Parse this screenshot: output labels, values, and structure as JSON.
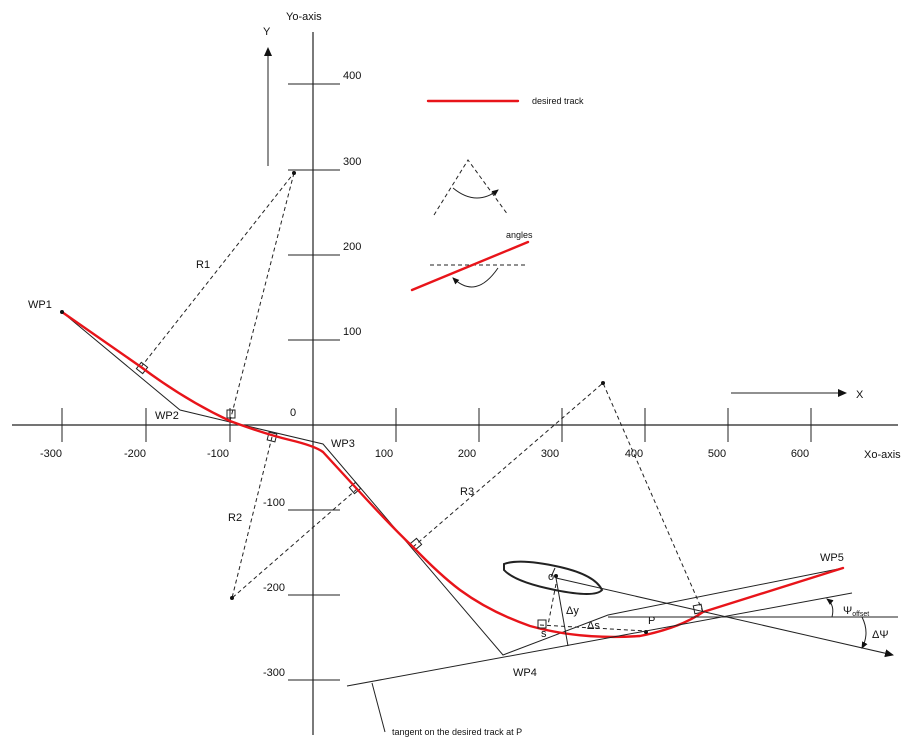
{
  "axes": {
    "x_axis_label": "Xo-axis",
    "y_axis_label": "Yo-axis",
    "x_arrow_label": "X",
    "y_arrow_label": "Y",
    "origin_label": "0",
    "x_ticks": [
      "-300",
      "-200",
      "-100",
      "100",
      "200",
      "300",
      "400",
      "500",
      "600"
    ],
    "y_ticks": [
      "400",
      "300",
      "200",
      "100",
      "-100",
      "-200",
      "-300"
    ]
  },
  "legend": {
    "desired_track": "desired track",
    "angles": "angles",
    "track_color": "#e8141a"
  },
  "waypoints": {
    "wp1": "WP1",
    "wp2": "WP2",
    "wp3": "WP3",
    "wp4": "WP4",
    "wp5": "WP5"
  },
  "radii": {
    "r1": "R1",
    "r2": "R2",
    "r3": "R3"
  },
  "vessel_annotations": {
    "origin": "o",
    "delta_y": "Δy",
    "delta_s": "Δs",
    "s": "s",
    "p": "P",
    "psi_offset_main": "Ψ",
    "psi_offset_sub": "offset",
    "delta_psi": "ΔΨ"
  },
  "tangent_caption": "tangent on the desired track at P"
}
